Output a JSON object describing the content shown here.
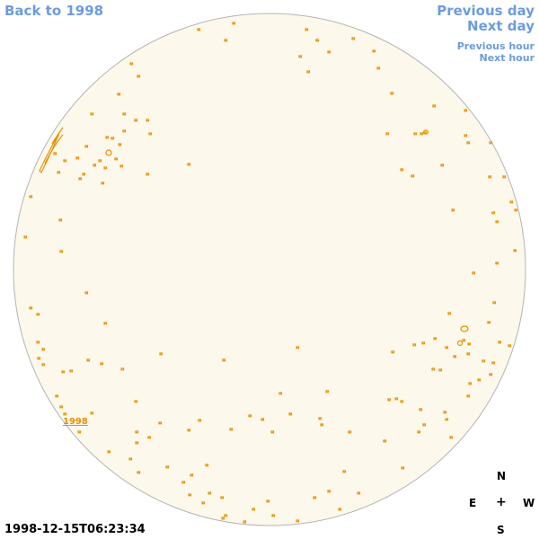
{
  "navigation": {
    "back": "Back to 1998",
    "previous_day": "Previous day",
    "next_day": "Next day",
    "previous_hour": "Previous hour",
    "next_hour": "Next hour"
  },
  "timestamp": "1998-12-15T06:23:34",
  "disk": {
    "year_label": "1998",
    "fill_color": "#fdf8ec",
    "outline_color": "#b4b4b4",
    "feature_color": "#e69100"
  },
  "compass": {
    "north": "N",
    "east": "E",
    "center": "+",
    "west": "W",
    "south": "S"
  },
  "colors": {
    "link": "#6d9be0",
    "text": "#000000"
  }
}
